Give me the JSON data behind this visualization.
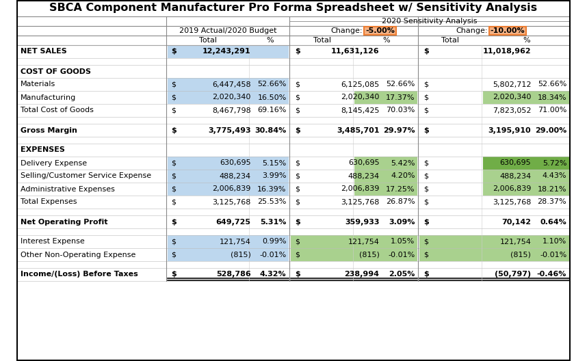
{
  "title": "SBCA Component Manufacturer Pro Forma Spreadsheet w/ Sensitivity Analysis",
  "sensitivity_label": "2020 Sensitivity Analysis",
  "colors": {
    "blue_light": "#BDD7EE",
    "green_light": "#A9D18E",
    "green_dark": "#70AD47",
    "orange_light": "#F4B183",
    "orange_box": "#ED7D31"
  },
  "rows": [
    {
      "label": "NET SALES",
      "bold": true,
      "type": "data",
      "c1_dollar": "$",
      "c1_val": "12,243,291",
      "c1_pct": "",
      "c2_dollar": "$",
      "c2_val": "11,631,126",
      "c2_pct": "",
      "c3_dollar": "$",
      "c3_val": "11,018,962",
      "c3_pct": "",
      "c1_bg": "blue_light",
      "c2_bg": null,
      "c3_bg": null,
      "c1_pct_bg": null,
      "c2_pct_bg": null,
      "c3_pct_bg": null
    },
    {
      "label": "",
      "type": "spacer"
    },
    {
      "label": "COST OF GOODS",
      "bold": true,
      "type": "header"
    },
    {
      "label": "Materials",
      "bold": false,
      "type": "data",
      "c1_dollar": "$",
      "c1_val": "6,447,458",
      "c1_pct": "52.66%",
      "c2_dollar": "$",
      "c2_val": "6,125,085",
      "c2_pct": "52.66%",
      "c3_dollar": "$",
      "c3_val": "5,802,712",
      "c3_pct": "52.66%",
      "c1_bg": "blue_light",
      "c2_bg": null,
      "c3_bg": null,
      "c1_pct_bg": null,
      "c2_pct_bg": null,
      "c3_pct_bg": null
    },
    {
      "label": "Manufacturing",
      "bold": false,
      "type": "data",
      "c1_dollar": "$",
      "c1_val": "2,020,340",
      "c1_pct": "16.50%",
      "c2_dollar": "$",
      "c2_val": "2,020,340",
      "c2_pct": "17.37%",
      "c3_dollar": "$",
      "c3_val": "2,020,340",
      "c3_pct": "18.34%",
      "c1_bg": "blue_light",
      "c2_bg": null,
      "c3_bg": null,
      "c1_pct_bg": null,
      "c2_pct_bg": "green_light",
      "c3_pct_bg": "green_light"
    },
    {
      "label": "Total Cost of Goods",
      "bold": false,
      "type": "data",
      "c1_dollar": "$",
      "c1_val": "8,467,798",
      "c1_pct": "69.16%",
      "c2_dollar": "$",
      "c2_val": "8,145,425",
      "c2_pct": "70.03%",
      "c3_dollar": "$",
      "c3_val": "7,823,052",
      "c3_pct": "71.00%",
      "c1_bg": null,
      "c2_bg": null,
      "c3_bg": null,
      "c1_pct_bg": null,
      "c2_pct_bg": null,
      "c3_pct_bg": null
    },
    {
      "label": "",
      "type": "spacer"
    },
    {
      "label": "Gross Margin",
      "bold": true,
      "type": "data",
      "c1_dollar": "$",
      "c1_val": "3,775,493",
      "c1_pct": "30.84%",
      "c2_dollar": "$",
      "c2_val": "3,485,701",
      "c2_pct": "29.97%",
      "c3_dollar": "$",
      "c3_val": "3,195,910",
      "c3_pct": "29.00%",
      "c1_bg": null,
      "c2_bg": null,
      "c3_bg": null,
      "c1_pct_bg": null,
      "c2_pct_bg": null,
      "c3_pct_bg": null
    },
    {
      "label": "",
      "type": "spacer"
    },
    {
      "label": "EXPENSES",
      "bold": true,
      "type": "header"
    },
    {
      "label": "Delivery Expense",
      "bold": false,
      "type": "data",
      "c1_dollar": "$",
      "c1_val": "630,695",
      "c1_pct": "5.15%",
      "c2_dollar": "$",
      "c2_val": "630,695",
      "c2_pct": "5.42%",
      "c3_dollar": "$",
      "c3_val": "630,695",
      "c3_pct": "5.72%",
      "c1_bg": "blue_light",
      "c2_bg": null,
      "c3_bg": null,
      "c1_pct_bg": null,
      "c2_pct_bg": "green_light",
      "c3_pct_bg": "green_dark"
    },
    {
      "label": "Selling/Customer Service Expense",
      "bold": false,
      "type": "data",
      "c1_dollar": "$",
      "c1_val": "488,234",
      "c1_pct": "3.99%",
      "c2_dollar": "$",
      "c2_val": "488,234",
      "c2_pct": "4.20%",
      "c3_dollar": "$",
      "c3_val": "488,234",
      "c3_pct": "4.43%",
      "c1_bg": "blue_light",
      "c2_bg": null,
      "c3_bg": null,
      "c1_pct_bg": null,
      "c2_pct_bg": "green_light",
      "c3_pct_bg": "green_light"
    },
    {
      "label": "Administrative Expenses",
      "bold": false,
      "type": "data",
      "c1_dollar": "$",
      "c1_val": "2,006,839",
      "c1_pct": "16.39%",
      "c2_dollar": "$",
      "c2_val": "2,006,839",
      "c2_pct": "17.25%",
      "c3_dollar": "$",
      "c3_val": "2,006,839",
      "c3_pct": "18.21%",
      "c1_bg": "blue_light",
      "c2_bg": null,
      "c3_bg": null,
      "c1_pct_bg": null,
      "c2_pct_bg": "green_light",
      "c3_pct_bg": "green_light"
    },
    {
      "label": "Total Expenses",
      "bold": false,
      "type": "data",
      "c1_dollar": "$",
      "c1_val": "3,125,768",
      "c1_pct": "25.53%",
      "c2_dollar": "$",
      "c2_val": "3,125,768",
      "c2_pct": "26.87%",
      "c3_dollar": "$",
      "c3_val": "3,125,768",
      "c3_pct": "28.37%",
      "c1_bg": null,
      "c2_bg": null,
      "c3_bg": null,
      "c1_pct_bg": null,
      "c2_pct_bg": null,
      "c3_pct_bg": null
    },
    {
      "label": "",
      "type": "spacer"
    },
    {
      "label": "Net Operating Profit",
      "bold": true,
      "type": "data",
      "c1_dollar": "$",
      "c1_val": "649,725",
      "c1_pct": "5.31%",
      "c2_dollar": "$",
      "c2_val": "359,933",
      "c2_pct": "3.09%",
      "c3_dollar": "$",
      "c3_val": "70,142",
      "c3_pct": "0.64%",
      "c1_bg": null,
      "c2_bg": null,
      "c3_bg": null,
      "c1_pct_bg": null,
      "c2_pct_bg": null,
      "c3_pct_bg": null
    },
    {
      "label": "",
      "type": "spacer"
    },
    {
      "label": "Interest Expense",
      "bold": false,
      "type": "data",
      "c1_dollar": "$",
      "c1_val": "121,754",
      "c1_pct": "0.99%",
      "c2_dollar": "$",
      "c2_val": "121,754",
      "c2_pct": "1.05%",
      "c3_dollar": "$",
      "c3_val": "121,754",
      "c3_pct": "1.10%",
      "c1_bg": "blue_light",
      "c2_bg": "green_light",
      "c3_bg": "green_light",
      "c1_pct_bg": null,
      "c2_pct_bg": null,
      "c3_pct_bg": null
    },
    {
      "label": "Other Non-Operating Expense",
      "bold": false,
      "type": "data",
      "c1_dollar": "$",
      "c1_val": "(815)",
      "c1_pct": "-0.01%",
      "c2_dollar": "$",
      "c2_val": "(815)",
      "c2_pct": "-0.01%",
      "c3_dollar": "$",
      "c3_val": "(815)",
      "c3_pct": "-0.01%",
      "c1_bg": "blue_light",
      "c2_bg": "green_light",
      "c3_bg": "green_light",
      "c1_pct_bg": null,
      "c2_pct_bg": null,
      "c3_pct_bg": null
    },
    {
      "label": "",
      "type": "spacer"
    },
    {
      "label": "Income/(Loss) Before Taxes",
      "bold": true,
      "type": "data_underline",
      "c1_dollar": "$",
      "c1_val": "528,786",
      "c1_pct": "4.32%",
      "c2_dollar": "$",
      "c2_val": "238,994",
      "c2_pct": "2.05%",
      "c3_dollar": "$",
      "c3_val": "(50,797)",
      "c3_pct": "-0.46%",
      "c1_bg": null,
      "c2_bg": null,
      "c3_bg": null,
      "c1_pct_bg": null,
      "c2_pct_bg": null,
      "c3_pct_bg": null
    }
  ]
}
